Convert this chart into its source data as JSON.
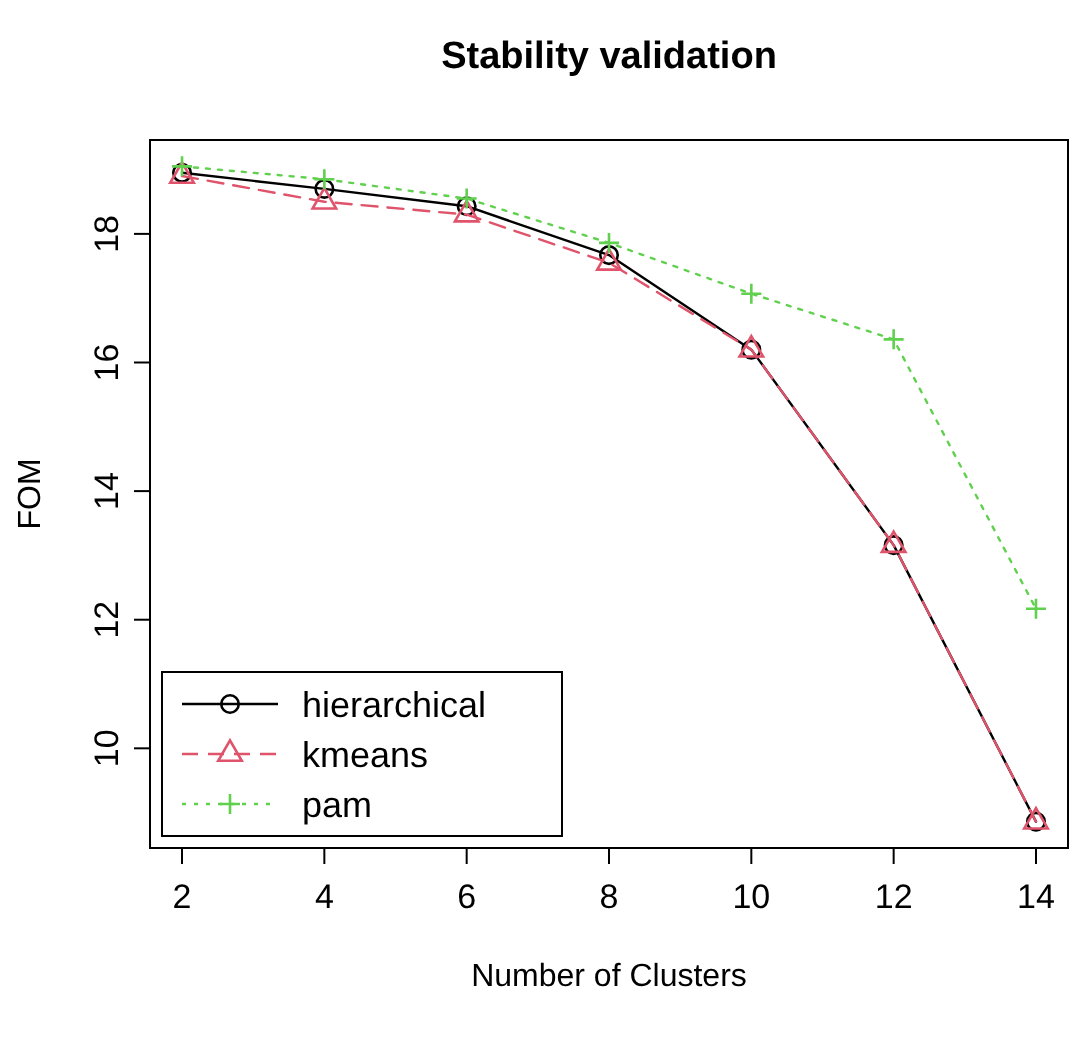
{
  "chart_data": {
    "type": "line",
    "title": "Stability validation",
    "xlabel": "Number of Clusters",
    "ylabel": "FOM",
    "x": [
      2,
      4,
      6,
      8,
      10,
      12,
      14
    ],
    "series": [
      {
        "name": "hierarchical",
        "color": "#000000",
        "line_style": "solid",
        "marker": "circle",
        "values": [
          18.95,
          18.7,
          18.43,
          17.67,
          16.2,
          13.16,
          8.86
        ]
      },
      {
        "name": "kmeans",
        "color": "#df536b",
        "line_style": "dashed",
        "marker": "triangle",
        "values": [
          18.9,
          18.5,
          18.3,
          17.55,
          16.2,
          13.16,
          8.86
        ]
      },
      {
        "name": "pam",
        "color": "#61d04f",
        "line_style": "dotted",
        "marker": "cross",
        "values": [
          19.05,
          18.85,
          18.55,
          17.86,
          17.07,
          16.36,
          12.17
        ]
      }
    ],
    "xlim": [
      1.55,
      14.45
    ],
    "ylim": [
      8.45,
      19.46
    ],
    "xticks": [
      2,
      4,
      6,
      8,
      10,
      12,
      14
    ],
    "yticks": [
      10,
      12,
      14,
      16,
      18
    ],
    "grid": false,
    "legend": "bottom left"
  }
}
